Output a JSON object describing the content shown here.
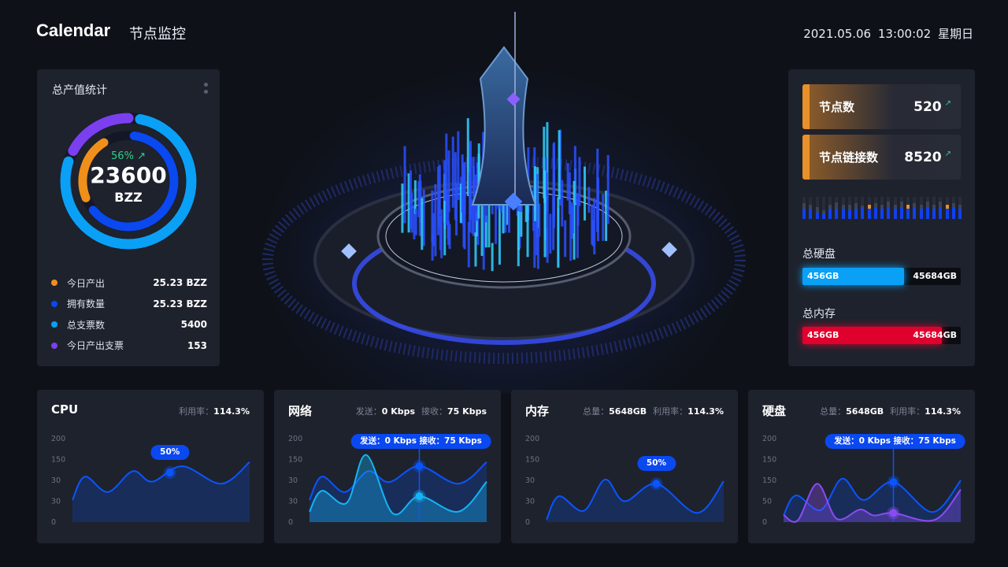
{
  "header": {
    "title": "Calendar",
    "subtitle": "节点监控",
    "datetime": "2021.05.06  13:00:02  星期日"
  },
  "left_panel": {
    "title": "总产值统计",
    "growth": "56%",
    "total": "23600",
    "unit": "BZZ",
    "rings": {
      "outer": [
        {
          "color": "#0aa0f5",
          "percent": 77
        },
        {
          "color": "#7b3ff0",
          "percent": 17
        }
      ],
      "inner": [
        {
          "color": "#0a48f0",
          "percent": 62
        },
        {
          "color": "#f0901a",
          "percent": 22
        }
      ]
    },
    "legend": [
      {
        "label": "今日产出",
        "value": "25.23 BZZ",
        "color": "#f0901a"
      },
      {
        "label": "拥有数量",
        "value": "25.23 BZZ",
        "color": "#0a48f0"
      },
      {
        "label": "总支票数",
        "value": "5400",
        "color": "#0aa0f5"
      },
      {
        "label": "今日产出支票",
        "value": "153",
        "color": "#7b3ff0"
      }
    ]
  },
  "right_panel": {
    "stats": [
      {
        "label": "节点数",
        "value": "520"
      },
      {
        "label": "节点链接数",
        "value": "8520"
      }
    ],
    "activity_bars": [
      {
        "b": 0.45,
        "g": 0.72
      },
      {
        "b": 0.45,
        "g": 0.65
      },
      {
        "b": 0.3,
        "g": 0.55
      },
      {
        "b": 0.25,
        "g": 0.4
      },
      {
        "b": 0.45,
        "g": 0.65
      },
      {
        "b": 0.45,
        "g": 0.75
      },
      {
        "b": 0.45,
        "g": 0.65
      },
      {
        "b": 0.38,
        "g": 0.65
      },
      {
        "b": 0.48,
        "g": 0.7
      },
      {
        "b": 0.52,
        "g": 0.62
      },
      {
        "b": 0.45,
        "g": 0.55,
        "o": true
      },
      {
        "b": 0.5,
        "g": 0.72
      },
      {
        "b": 0.45,
        "g": 0.65
      },
      {
        "b": 0.55,
        "g": 0.78
      },
      {
        "b": 0.45,
        "g": 0.65
      },
      {
        "b": 0.55,
        "g": 0.78
      },
      {
        "b": 0.45,
        "g": 0.55,
        "o": true
      },
      {
        "b": 0.55,
        "g": 0.72
      },
      {
        "b": 0.45,
        "g": 0.65
      },
      {
        "b": 0.55,
        "g": 0.78
      },
      {
        "b": 0.45,
        "g": 0.65
      },
      {
        "b": 0.55,
        "g": 0.78
      },
      {
        "b": 0.45,
        "g": 0.55,
        "o": true
      },
      {
        "b": 0.55,
        "g": 0.72
      },
      {
        "b": 0.45,
        "g": 0.65
      }
    ],
    "disk": {
      "label": "总硬盘",
      "used": "456GB",
      "total": "45684GB",
      "fraction": 0.64,
      "color": "#0aa0f5"
    },
    "memory": {
      "label": "总内存",
      "used": "456GB",
      "total": "45684GB",
      "fraction": 0.88,
      "color": "#e0002e"
    }
  },
  "chart_data": [
    {
      "type": "area",
      "title": "CPU",
      "meta": [
        {
          "k": "利用率：",
          "v": "114.3%"
        }
      ],
      "yticks": [
        "200",
        "150",
        "30",
        "30",
        "0"
      ],
      "ylim": [
        0,
        200
      ],
      "tooltip": "50%",
      "highlight": 55,
      "series": [
        {
          "color": "#0a55ff",
          "points": [
            [
              0,
              53
            ],
            [
              7,
              109
            ],
            [
              20,
              72
            ],
            [
              34,
              122
            ],
            [
              45,
              97
            ],
            [
              62,
              134
            ],
            [
              84,
              92
            ],
            [
              100,
              144
            ]
          ]
        }
      ]
    },
    {
      "type": "area",
      "title": "网络",
      "meta": [
        {
          "k": "发送：",
          "v": "0 Kbps"
        },
        {
          "k": "接收：",
          "v": "75 Kbps"
        }
      ],
      "yticks": [
        "200",
        "150",
        "30",
        "30",
        "0"
      ],
      "ylim": [
        0,
        200
      ],
      "tooltip": "发送：0 Kbps    接收：75 Kbps",
      "highlight": 62,
      "series": [
        {
          "color": "#0a55ff",
          "points": [
            [
              0,
              53
            ],
            [
              7,
              109
            ],
            [
              20,
              72
            ],
            [
              33,
              122
            ],
            [
              45,
              96
            ],
            [
              62,
              134
            ],
            [
              84,
              92
            ],
            [
              100,
              144
            ]
          ]
        },
        {
          "color": "#14b4f5",
          "points": [
            [
              0,
              25
            ],
            [
              7,
              75
            ],
            [
              21,
              46
            ],
            [
              32,
              161
            ],
            [
              47,
              21
            ],
            [
              62,
              62
            ],
            [
              84,
              25
            ],
            [
              100,
              97
            ]
          ]
        }
      ]
    },
    {
      "type": "area",
      "title": "内存",
      "meta": [
        {
          "k": "总量：",
          "v": "5648GB"
        },
        {
          "k": "利用率：",
          "v": "114.3%"
        }
      ],
      "yticks": [
        "200",
        "150",
        "30",
        "30",
        "0"
      ],
      "ylim": [
        0,
        200
      ],
      "tooltip": "50%",
      "highlight": 62,
      "series": [
        {
          "color": "#0a55ff",
          "points": [
            [
              0,
              6
            ],
            [
              7,
              62
            ],
            [
              21,
              27
            ],
            [
              33,
              102
            ],
            [
              44,
              50
            ],
            [
              62,
              92
            ],
            [
              85,
              22
            ],
            [
              100,
              98
            ]
          ]
        }
      ]
    },
    {
      "type": "area",
      "title": "硬盘",
      "meta": [
        {
          "k": "总量：",
          "v": "5648GB"
        },
        {
          "k": "利用率：",
          "v": "114.3%"
        }
      ],
      "yticks": [
        "200",
        "150",
        "150",
        "50",
        "0"
      ],
      "ylim": [
        0,
        200
      ],
      "tooltip": "发送：0 Kbps    接收：75 Kbps",
      "highlight": 62,
      "series": [
        {
          "color": "#0a55ff",
          "points": [
            [
              0,
              16
            ],
            [
              7,
              64
            ],
            [
              21,
              29
            ],
            [
              33,
              104
            ],
            [
              45,
              53
            ],
            [
              62,
              96
            ],
            [
              84,
              24
            ],
            [
              100,
              100
            ]
          ]
        },
        {
          "color": "#8a4cf0",
          "points": [
            [
              0,
              17
            ],
            [
              8,
              4
            ],
            [
              19,
              92
            ],
            [
              30,
              8
            ],
            [
              43,
              30
            ],
            [
              51,
              16
            ],
            [
              62,
              22
            ],
            [
              85,
              5
            ],
            [
              100,
              78
            ]
          ]
        }
      ]
    }
  ]
}
